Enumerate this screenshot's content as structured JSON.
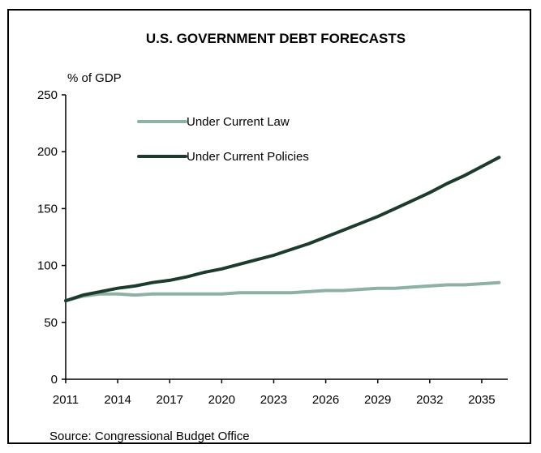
{
  "chart_data": {
    "type": "line",
    "title": "U.S. GOVERNMENT DEBT FORECASTS",
    "ylabel": "% of GDP",
    "xlabel": "",
    "source": "Source: Congressional Budget Office",
    "ylim": [
      0,
      250
    ],
    "yticks": [
      0,
      50,
      100,
      150,
      200,
      250
    ],
    "xlim": [
      2011,
      2036.5
    ],
    "xticks": [
      2011,
      2014,
      2017,
      2020,
      2023,
      2026,
      2029,
      2032,
      2035
    ],
    "grid": false,
    "legend_position": "top-left, inside plot",
    "x": [
      2011,
      2012,
      2013,
      2014,
      2015,
      2016,
      2017,
      2018,
      2019,
      2020,
      2021,
      2022,
      2023,
      2024,
      2025,
      2026,
      2027,
      2028,
      2029,
      2030,
      2031,
      2032,
      2033,
      2034,
      2035,
      2036
    ],
    "series": [
      {
        "name": "Under Current Law",
        "color": "#8fb0a4",
        "values": [
          69,
          73,
          75,
          75,
          74,
          75,
          75,
          75,
          75,
          75,
          76,
          76,
          76,
          76,
          77,
          78,
          78,
          79,
          80,
          80,
          81,
          82,
          83,
          83,
          84,
          85
        ]
      },
      {
        "name": "Under Current Policies",
        "color": "#1d3b2c",
        "values": [
          69,
          74,
          77,
          80,
          82,
          85,
          87,
          90,
          94,
          97,
          101,
          105,
          109,
          114,
          119,
          125,
          131,
          137,
          143,
          150,
          157,
          164,
          172,
          179,
          187,
          195
        ]
      }
    ]
  }
}
